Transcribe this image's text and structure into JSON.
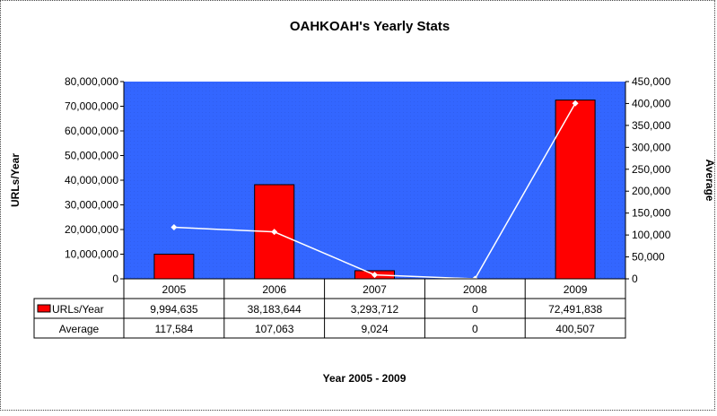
{
  "colors": {
    "plot_area": "#3366FF",
    "bar_fill": "#FF0000",
    "bar_stroke": "#000000",
    "line": "#FFFFFF"
  },
  "chart_data": {
    "type": "bar",
    "title": "OAHKOAH's Yearly Stats",
    "xlabel": "Year 2005 - 2009",
    "ylabel": "URLs/Year",
    "y2label": "Average",
    "categories": [
      "2005",
      "2006",
      "2007",
      "2008",
      "2009"
    ],
    "ylim": [
      0,
      80000000
    ],
    "y2lim": [
      0,
      450000
    ],
    "yticks": [
      "0",
      "10,000,000",
      "20,000,000",
      "30,000,000",
      "40,000,000",
      "50,000,000",
      "60,000,000",
      "70,000,000",
      "80,000,000"
    ],
    "y2ticks": [
      "0",
      "50,000",
      "100,000",
      "150,000",
      "200,000",
      "250,000",
      "300,000",
      "350,000",
      "400,000",
      "450,000"
    ],
    "series": [
      {
        "name": "URLs/Year",
        "kind": "bar",
        "axis": "left",
        "values": [
          9994635,
          38183644,
          3293712,
          0,
          72491838
        ],
        "labels": [
          "9,994,635",
          "38,183,644",
          "3,293,712",
          "0",
          "72,491,838"
        ]
      },
      {
        "name": "Average",
        "kind": "line",
        "axis": "right",
        "values": [
          117584,
          107063,
          9024,
          0,
          400507
        ],
        "labels": [
          "117,584",
          "107,063",
          "9,024",
          "0",
          "400,507"
        ]
      }
    ],
    "grid": false,
    "legend": "data-table"
  }
}
